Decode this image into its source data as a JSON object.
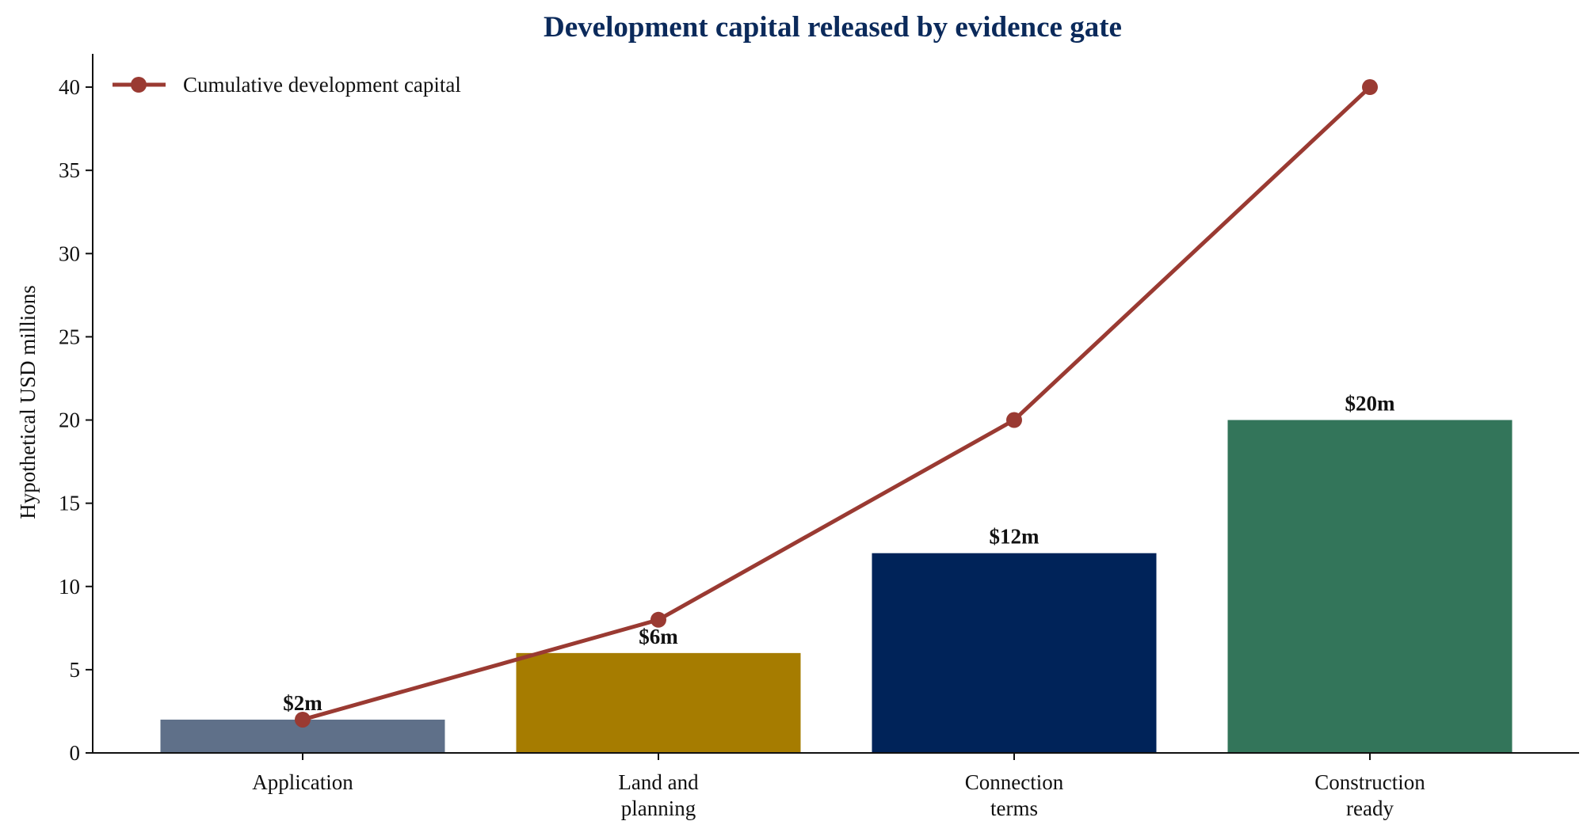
{
  "chart_data": {
    "type": "bar",
    "title": "Development capital released by evidence gate",
    "ylabel": "Hypothetical USD millions",
    "xlabel": "",
    "ylim": [
      0,
      42
    ],
    "yticks": [
      0,
      5,
      10,
      15,
      20,
      25,
      30,
      35,
      40
    ],
    "categories": [
      [
        "Application"
      ],
      [
        "Land and",
        "planning"
      ],
      [
        "Connection",
        "terms"
      ],
      [
        "Construction",
        "ready"
      ]
    ],
    "bars": {
      "values": [
        2,
        6,
        12,
        20
      ],
      "labels": [
        "$2m",
        "$6m",
        "$12m",
        "$20m"
      ],
      "colors": [
        "#5f7089",
        "#a67c00",
        "#002359",
        "#33755a"
      ]
    },
    "series": [
      {
        "name": "Cumulative development capital",
        "type": "line",
        "values": [
          2,
          8,
          20,
          40
        ],
        "color": "#9a3a32"
      }
    ],
    "legend_position": "top-left",
    "title_color": "#0b2a5b",
    "grid": false
  }
}
